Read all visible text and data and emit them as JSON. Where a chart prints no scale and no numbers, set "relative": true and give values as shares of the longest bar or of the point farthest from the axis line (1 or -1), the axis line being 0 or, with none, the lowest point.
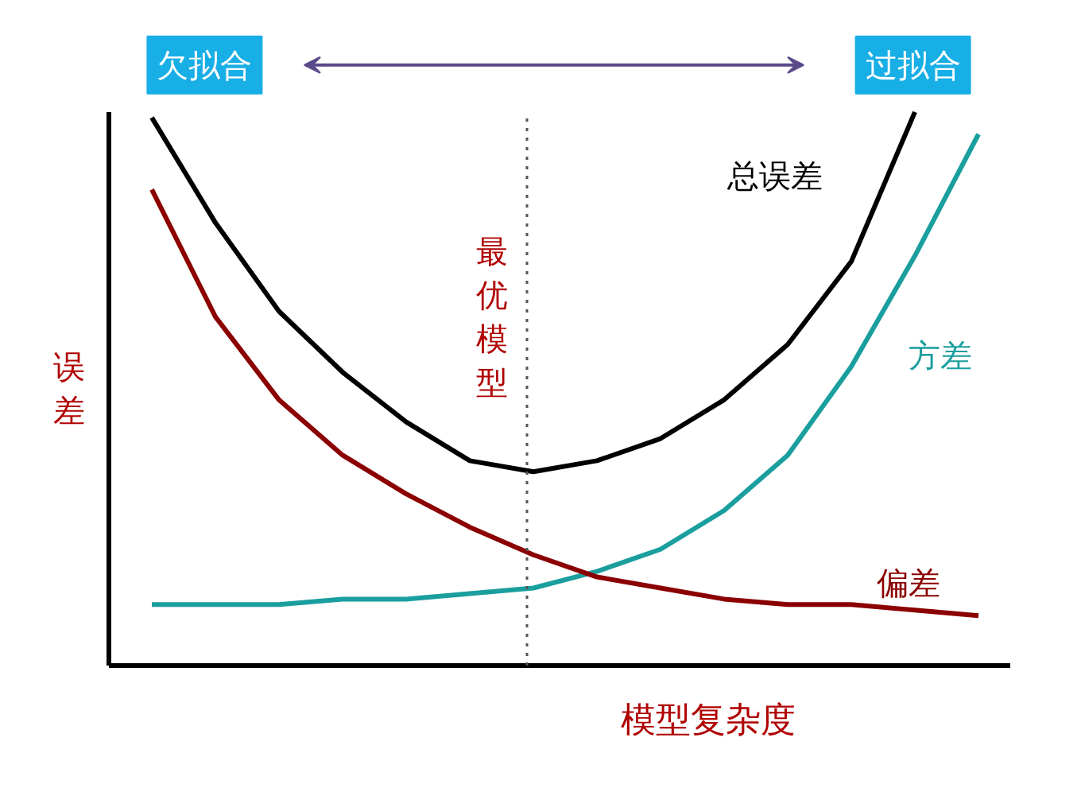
{
  "chart_data": {
    "type": "line",
    "relative": true,
    "xlabel": "模型复杂度",
    "ylabel": "误差",
    "categories": [
      null,
      null,
      null,
      null,
      null,
      null,
      null,
      null,
      null,
      null,
      null,
      null,
      null,
      null
    ],
    "series": [
      {
        "name": "总误差",
        "color": "#000000",
        "values": [
          0.99,
          0.8,
          0.64,
          0.53,
          0.44,
          0.37,
          0.35,
          0.37,
          0.41,
          0.48,
          0.58,
          0.73,
          1.0,
          null
        ]
      },
      {
        "name": "方差",
        "color": "#1a9e9e",
        "values": [
          0.11,
          0.11,
          0.11,
          0.12,
          0.12,
          0.13,
          0.14,
          0.17,
          0.21,
          0.28,
          0.38,
          0.54,
          0.74,
          0.96
        ]
      },
      {
        "name": "偏差",
        "color": "#8b0000",
        "values": [
          0.86,
          0.63,
          0.48,
          0.38,
          0.31,
          0.25,
          0.2,
          0.16,
          0.14,
          0.12,
          0.11,
          0.11,
          0.1,
          0.09
        ]
      }
    ],
    "annotations": [
      "欠拟合",
      "过拟合",
      "最优模型"
    ],
    "line_style": "solid"
  }
}
